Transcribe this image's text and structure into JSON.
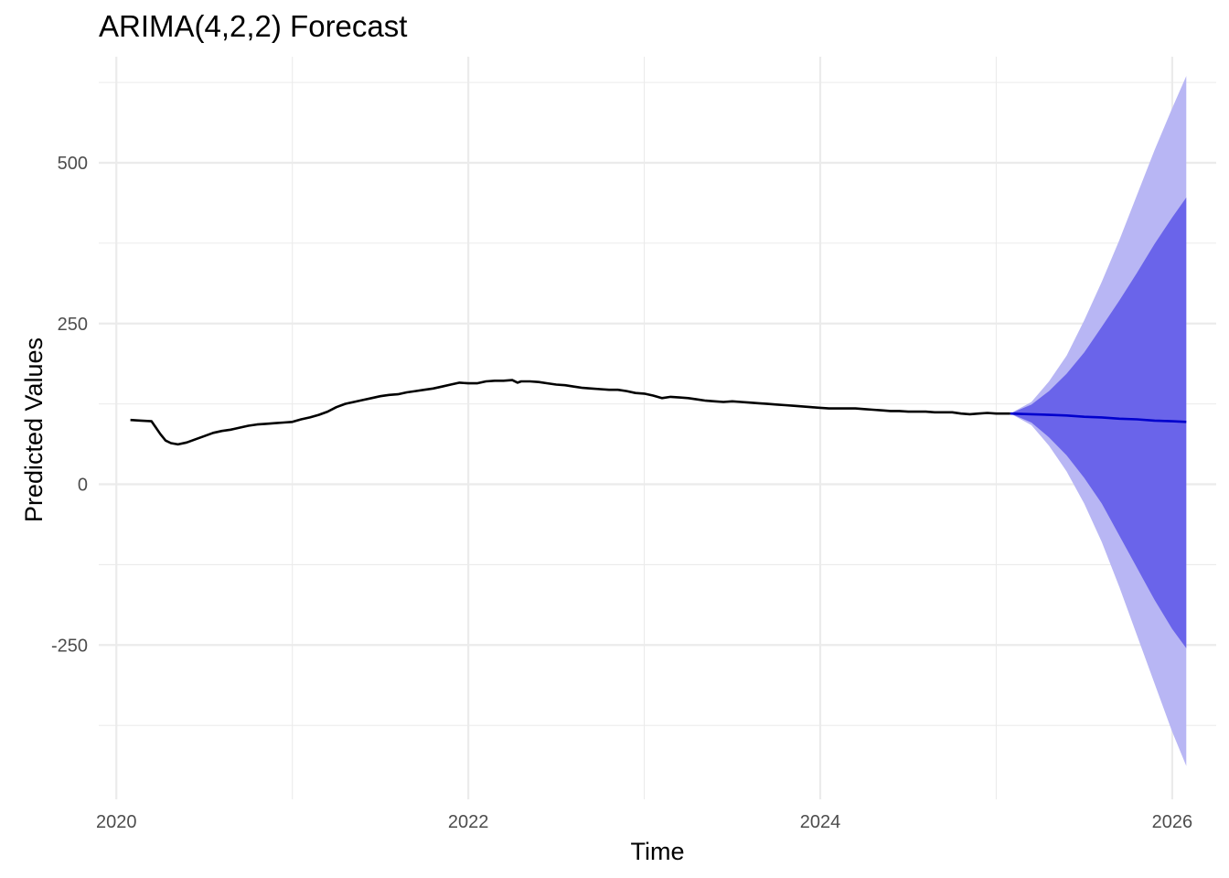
{
  "chart_data": {
    "type": "line",
    "title": "ARIMA(4,2,2) Forecast",
    "xlabel": "Time",
    "ylabel": "Predicted Values",
    "xlim": [
      2019.9,
      2026.25
    ],
    "ylim": [
      -490,
      665
    ],
    "x_ticks": [
      2020,
      2022,
      2024,
      2026
    ],
    "x_tick_labels": [
      "2020",
      "2022",
      "2024",
      "2026"
    ],
    "y_ticks": [
      -250,
      0,
      250,
      500
    ],
    "y_tick_labels": [
      "-250",
      "0",
      "250",
      "500"
    ],
    "grid": true,
    "legend": "none",
    "colors": {
      "history": "#000000",
      "forecast": "#0000cd",
      "band_80": "#6a64ea",
      "band_95": "#b8b6f4",
      "grid": "#ebebeb"
    },
    "history": {
      "x": [
        2020.08,
        2020.14,
        2020.2,
        2020.22,
        2020.25,
        2020.28,
        2020.31,
        2020.35,
        2020.4,
        2020.45,
        2020.5,
        2020.55,
        2020.6,
        2020.65,
        2020.7,
        2020.75,
        2020.8,
        2020.85,
        2020.9,
        2020.95,
        2021.0,
        2021.05,
        2021.1,
        2021.15,
        2021.2,
        2021.25,
        2021.3,
        2021.35,
        2021.4,
        2021.45,
        2021.5,
        2021.55,
        2021.6,
        2021.65,
        2021.7,
        2021.75,
        2021.8,
        2021.85,
        2021.9,
        2021.95,
        2022.0,
        2022.05,
        2022.1,
        2022.15,
        2022.2,
        2022.25,
        2022.28,
        2022.3,
        2022.35,
        2022.4,
        2022.45,
        2022.5,
        2022.55,
        2022.6,
        2022.65,
        2022.7,
        2022.75,
        2022.8,
        2022.85,
        2022.9,
        2022.95,
        2023.0,
        2023.05,
        2023.1,
        2023.15,
        2023.2,
        2023.25,
        2023.3,
        2023.35,
        2023.4,
        2023.45,
        2023.5,
        2023.55,
        2023.6,
        2023.65,
        2023.7,
        2023.75,
        2023.8,
        2023.85,
        2023.9,
        2023.95,
        2024.0,
        2024.05,
        2024.1,
        2024.15,
        2024.2,
        2024.25,
        2024.3,
        2024.35,
        2024.4,
        2024.45,
        2024.5,
        2024.55,
        2024.6,
        2024.65,
        2024.7,
        2024.75,
        2024.8,
        2024.85,
        2024.9,
        2024.95,
        2025.0,
        2025.05,
        2025.08
      ],
      "y": [
        100,
        99,
        98,
        90,
        78,
        68,
        64,
        62,
        65,
        70,
        75,
        80,
        83,
        85,
        88,
        91,
        93,
        94,
        95,
        96,
        97,
        101,
        104,
        108,
        113,
        120,
        125,
        128,
        131,
        134,
        137,
        139,
        140,
        143,
        145,
        147,
        149,
        152,
        155,
        158,
        157,
        157,
        160,
        161,
        161,
        162,
        158,
        160,
        160,
        159,
        157,
        155,
        154,
        152,
        150,
        149,
        148,
        147,
        147,
        145,
        142,
        141,
        138,
        134,
        136,
        135,
        134,
        132,
        130,
        129,
        128,
        129,
        128,
        127,
        126,
        125,
        124,
        123,
        122,
        121,
        120,
        119,
        118,
        118,
        118,
        118,
        117,
        116,
        115,
        114,
        114,
        113,
        113,
        113,
        112,
        112,
        112,
        110,
        109,
        110,
        111,
        110,
        110,
        110
      ]
    },
    "forecast": {
      "x": [
        2025.08,
        2025.2,
        2025.3,
        2025.4,
        2025.5,
        2025.6,
        2025.7,
        2025.8,
        2025.9,
        2026.0,
        2026.08
      ],
      "mean": [
        110,
        109,
        108,
        107,
        105,
        104,
        102,
        101,
        99,
        98,
        97
      ],
      "upper_80": [
        110,
        124,
        145,
        172,
        205,
        245,
        286,
        329,
        374,
        415,
        446
      ],
      "lower_80": [
        110,
        96,
        73,
        45,
        10,
        -30,
        -80,
        -130,
        -180,
        -225,
        -255
      ],
      "upper_95": [
        110,
        128,
        160,
        200,
        255,
        315,
        380,
        450,
        520,
        585,
        635
      ],
      "lower_95": [
        110,
        92,
        60,
        20,
        -30,
        -90,
        -160,
        -235,
        -310,
        -385,
        -438
      ]
    }
  }
}
